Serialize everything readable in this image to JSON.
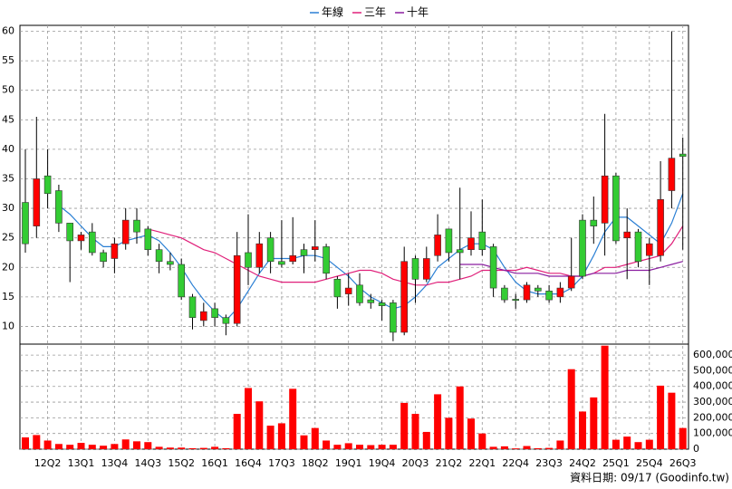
{
  "chart_data": {
    "type": "candlestick",
    "categories": [
      null,
      null,
      "12Q2",
      null,
      null,
      "13Q1",
      null,
      null,
      "13Q4",
      null,
      null,
      "14Q3",
      null,
      null,
      "15Q2",
      null,
      null,
      "16Q1",
      null,
      null,
      "16Q4",
      null,
      null,
      "17Q3",
      null,
      null,
      "18Q2",
      null,
      null,
      "19Q1",
      null,
      null,
      "19Q4",
      null,
      null,
      "20Q3",
      null,
      null,
      "21Q2",
      null,
      null,
      "22Q1",
      null,
      null,
      "22Q4",
      null,
      null,
      "23Q3",
      null,
      null,
      "24Q2",
      null,
      null,
      "25Q1",
      null,
      null,
      "25Q4",
      null,
      null,
      "26Q3"
    ],
    "open": [
      31,
      27,
      35.5,
      33,
      27.5,
      24.5,
      26,
      22.5,
      21.5,
      24,
      28,
      26.5,
      23,
      21,
      20.5,
      15,
      11,
      13,
      11.5,
      10.5,
      22.5,
      20,
      25,
      21,
      21,
      23,
      23,
      23.5,
      18,
      15.5,
      17,
      14.5,
      14,
      14,
      9,
      21.5,
      18,
      22,
      26.5,
      23,
      23,
      26,
      23.5,
      16.5,
      14.6,
      14.5,
      16.5,
      16,
      15,
      16.5,
      28,
      28,
      27.5,
      35.5,
      25,
      26,
      22,
      22,
      33,
      39.2
    ],
    "high": [
      40,
      45.5,
      40,
      34,
      27.5,
      26,
      27.5,
      23,
      25,
      30,
      30,
      27,
      24,
      22.5,
      21.5,
      15.5,
      14,
      14,
      12,
      26,
      29,
      26,
      26,
      28,
      28.5,
      24,
      28,
      24,
      18.5,
      19,
      19,
      15.5,
      14.5,
      14.5,
      23.5,
      22,
      23.5,
      29,
      26.5,
      33.5,
      29.5,
      31.5,
      24,
      17,
      15.5,
      17.5,
      17,
      17,
      17.5,
      25,
      29,
      32,
      46,
      36,
      30,
      26.5,
      25,
      38,
      60,
      42
    ],
    "low": [
      22.5,
      25,
      30,
      26,
      17.5,
      23,
      22,
      20,
      19,
      23,
      24,
      22,
      19,
      19.5,
      14.5,
      9.5,
      10,
      10,
      8.5,
      10,
      17,
      19,
      19,
      20,
      20.5,
      19,
      21,
      18,
      13,
      13.5,
      13.5,
      13,
      11,
      7.5,
      8.5,
      14,
      17.5,
      21,
      21,
      18,
      22,
      22,
      15,
      14,
      13,
      14,
      15,
      14,
      14,
      16,
      18,
      24,
      22,
      24,
      18,
      20,
      17,
      21,
      30,
      23
    ],
    "close": [
      24,
      35,
      32.5,
      27.5,
      24.5,
      25.5,
      22.5,
      21,
      24,
      28,
      26,
      23,
      21,
      20.5,
      15,
      11.5,
      12.5,
      11.5,
      10.5,
      22,
      20,
      24,
      21,
      20.5,
      22,
      22,
      23.5,
      19,
      15,
      16.5,
      14,
      14,
      13.5,
      9,
      21,
      18,
      21.5,
      25.5,
      22.5,
      22.5,
      25,
      23,
      16.5,
      14.5,
      14.4,
      17,
      16,
      14.5,
      16.5,
      18.5,
      18.5,
      27,
      35.5,
      24.5,
      26,
      21,
      24,
      31.5,
      38.5,
      38.8
    ],
    "up_color": "#ff0000",
    "down_color": "#33cc33",
    "ylim": [
      7,
      61
    ],
    "yticks": [
      10,
      15,
      20,
      25,
      30,
      35,
      40,
      45,
      50,
      55,
      60
    ],
    "grid": true,
    "legend": "top",
    "series": [
      {
        "name": "年線",
        "color": "#2a7fd4",
        "values": [
          null,
          null,
          null,
          30.5,
          29,
          27,
          25,
          23.5,
          23.5,
          24.5,
          25,
          25.5,
          24.5,
          22.5,
          20,
          17,
          14.5,
          12.5,
          11,
          13,
          16,
          19,
          21.5,
          21.5,
          21.5,
          22,
          22,
          21.5,
          20,
          18.5,
          16.5,
          15,
          14,
          13,
          13.5,
          15,
          17,
          20,
          21.5,
          23,
          24,
          24,
          23,
          20,
          17.5,
          16,
          15.5,
          15.5,
          15.5,
          16.5,
          18.5,
          22,
          26,
          28.5,
          28.5,
          27,
          25.5,
          24,
          27.5,
          32.5
        ]
      },
      {
        "name": "三年",
        "color": "#e0207a",
        "values": [
          null,
          null,
          null,
          null,
          null,
          null,
          null,
          null,
          null,
          null,
          null,
          26.5,
          26,
          25.5,
          25,
          24,
          23,
          22.5,
          21.5,
          20.5,
          19.5,
          18.5,
          18,
          17.5,
          17.5,
          17.5,
          17.5,
          18,
          18.5,
          19,
          19.5,
          19.5,
          19,
          18,
          17.5,
          17,
          17,
          17.5,
          17.5,
          18,
          18.5,
          19.5,
          19.5,
          19.5,
          19.5,
          20,
          19.5,
          19,
          19,
          18.5,
          18.5,
          19,
          20,
          20,
          20.5,
          21,
          21.5,
          22,
          24,
          27
        ]
      },
      {
        "name": "十年",
        "color": "#8a1ea0",
        "values": [
          null,
          null,
          null,
          null,
          null,
          null,
          null,
          null,
          null,
          null,
          null,
          null,
          null,
          null,
          null,
          null,
          null,
          null,
          null,
          null,
          null,
          null,
          null,
          null,
          null,
          null,
          null,
          null,
          null,
          null,
          null,
          null,
          null,
          null,
          null,
          null,
          null,
          null,
          null,
          20.5,
          20.5,
          20.5,
          20,
          19.5,
          19,
          19,
          19,
          18.5,
          18.5,
          18.5,
          18.5,
          19,
          19,
          19,
          19.5,
          19.5,
          19.5,
          20,
          20.5,
          21
        ]
      }
    ],
    "volume": {
      "color": "#ff0000",
      "values": [
        75000,
        90000,
        55000,
        33000,
        28000,
        40000,
        28000,
        22000,
        33000,
        62000,
        50000,
        45000,
        15000,
        10000,
        10000,
        6000,
        8000,
        15000,
        6000,
        225000,
        390000,
        305000,
        150000,
        165000,
        385000,
        88000,
        135000,
        55000,
        28000,
        38000,
        28000,
        26000,
        28000,
        28000,
        295000,
        225000,
        110000,
        350000,
        200000,
        400000,
        195000,
        100000,
        15000,
        18000,
        5000,
        20000,
        6000,
        8000,
        55000,
        510000,
        240000,
        330000,
        660000,
        60000,
        80000,
        45000,
        60000,
        405000,
        360000,
        135000
      ],
      "ylim": [
        0,
        670000
      ],
      "yticks": [
        0,
        {
          "value": 100000,
          "label": "100,000"
        },
        {
          "value": 200000,
          "label": "200,000"
        },
        {
          "value": 300000,
          "label": "300,000"
        },
        {
          "value": 400000,
          "label": "400,000"
        },
        {
          "value": 500000,
          "label": "500,000"
        },
        {
          "value": 600000,
          "label": "600,000"
        }
      ]
    },
    "footer": "資料日期: 09/17  (Goodinfo.tw)"
  }
}
